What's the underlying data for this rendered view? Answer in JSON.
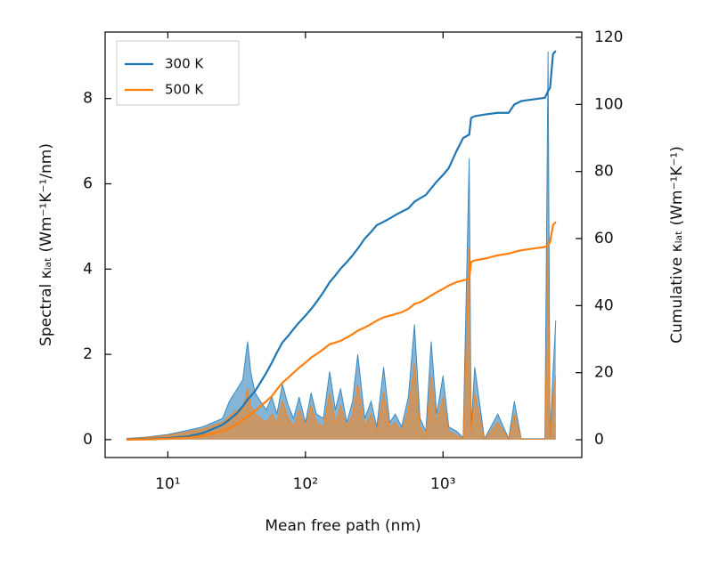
{
  "chart_data": {
    "type": "line",
    "x_label": "Mean free path (nm)",
    "y_label": "Spectral κₗₐₜ (Wm⁻¹K⁻¹/nm)",
    "y2_label": "Cumulative κₗₐₜ (Wm⁻¹K⁻¹)",
    "x_scale": "log",
    "legend": "upper left",
    "x": [
      5,
      7,
      10,
      14,
      18,
      22,
      25,
      28,
      32,
      35,
      38,
      40,
      43,
      47,
      52,
      57,
      62,
      68,
      75,
      82,
      90,
      100,
      110,
      120,
      135,
      150,
      165,
      180,
      200,
      220,
      240,
      270,
      300,
      330,
      370,
      410,
      450,
      500,
      560,
      620,
      680,
      750,
      820,
      900,
      1000,
      1100,
      1250,
      1400,
      1550,
      1600,
      1700,
      2000,
      2500,
      3000,
      3300,
      3700,
      4500,
      5500,
      5800,
      6000,
      6300,
      6600
    ],
    "series": [
      {
        "name": "300 K",
        "color": "#1f77b4",
        "axis": "y",
        "fill": true,
        "values": [
          0.03,
          0.06,
          0.12,
          0.22,
          0.3,
          0.42,
          0.5,
          0.9,
          1.2,
          1.4,
          2.3,
          1.6,
          1.1,
          0.9,
          0.7,
          1.0,
          0.6,
          1.3,
          0.8,
          0.5,
          1.0,
          0.4,
          1.1,
          0.6,
          0.5,
          1.6,
          0.7,
          1.2,
          0.4,
          0.9,
          2.0,
          0.5,
          0.9,
          0.3,
          1.7,
          0.4,
          0.6,
          0.3,
          1.0,
          2.7,
          0.5,
          0.2,
          2.3,
          0.6,
          1.5,
          0.3,
          0.2,
          0.05,
          6.6,
          0.3,
          1.7,
          0.02,
          0.6,
          0.02,
          0.9,
          0.02,
          0.02,
          0.02,
          9.1,
          0.02,
          1.6,
          2.8
        ]
      },
      {
        "name": "500 K",
        "color": "#ff7f0e",
        "axis": "y",
        "fill": true,
        "values": [
          0.02,
          0.05,
          0.1,
          0.18,
          0.25,
          0.35,
          0.4,
          0.55,
          0.7,
          0.7,
          1.2,
          0.8,
          0.6,
          0.5,
          0.4,
          0.6,
          0.4,
          0.9,
          0.5,
          0.3,
          0.7,
          0.3,
          0.8,
          0.4,
          0.3,
          1.1,
          0.4,
          0.8,
          0.3,
          0.6,
          1.3,
          0.3,
          0.6,
          0.2,
          1.1,
          0.3,
          0.4,
          0.2,
          0.7,
          1.8,
          0.3,
          0.1,
          1.5,
          0.4,
          1.0,
          0.2,
          0.1,
          0.03,
          4.5,
          0.2,
          1.1,
          0.01,
          0.4,
          0.01,
          0.6,
          0.01,
          0.01,
          0.01,
          4.7,
          0.01,
          1.0,
          1.5
        ]
      },
      {
        "color": "#1f77b4",
        "axis": "y2",
        "fill": false,
        "values": [
          0.1,
          0.2,
          0.5,
          1,
          2,
          3.5,
          4.5,
          6,
          8,
          10,
          12,
          13,
          14.5,
          17,
          20,
          23,
          26,
          29,
          31,
          33,
          35,
          37,
          39,
          41,
          44,
          47,
          49,
          51,
          53,
          55,
          57,
          60,
          62,
          64,
          65,
          66,
          67,
          68,
          69,
          71,
          72,
          73,
          75,
          77,
          79,
          81,
          86,
          90,
          91,
          96,
          96.5,
          97,
          97.5,
          97.5,
          100,
          101,
          101.5,
          102,
          104,
          105,
          115,
          116
        ]
      },
      {
        "color": "#ff7f0e",
        "axis": "y2",
        "fill": false,
        "values": [
          0.05,
          0.1,
          0.3,
          0.6,
          1.2,
          2,
          2.6,
          3.4,
          4.6,
          5.8,
          7,
          7.6,
          8.5,
          10,
          11.5,
          13,
          15,
          17,
          18.5,
          20,
          21.5,
          23,
          24.5,
          25.5,
          27,
          28.5,
          29,
          29.5,
          30.5,
          31.5,
          32.5,
          33.5,
          34.5,
          35.5,
          36.5,
          37,
          37.5,
          38,
          39,
          40.5,
          41,
          42,
          43,
          44,
          45,
          46,
          47,
          47.5,
          48,
          53,
          53.5,
          54,
          55,
          55.5,
          56,
          56.5,
          57,
          57.5,
          58,
          59,
          64,
          65
        ]
      }
    ],
    "xlim": [
      3.5,
      10200
    ],
    "xticks": [
      {
        "value": 10,
        "label": "10¹"
      },
      {
        "value": 100,
        "label": "10²"
      },
      {
        "value": 1000,
        "label": "10³"
      }
    ],
    "ylim": [
      -0.42,
      9.56
    ],
    "yticks": [
      0,
      2,
      4,
      6,
      8
    ],
    "y2lim": [
      -5.3,
      121.6
    ],
    "y2ticks": [
      0,
      20,
      40,
      60,
      80,
      100,
      120
    ]
  }
}
